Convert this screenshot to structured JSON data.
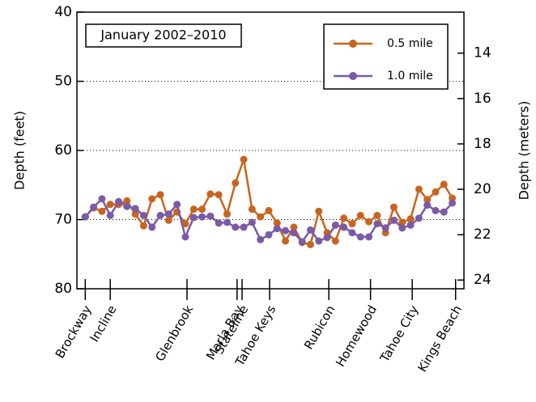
{
  "chart_data": {
    "type": "line",
    "title": "January 2002–2010",
    "y_label": "Depth (feet)",
    "y2_label": "Depth (meters)",
    "x": [
      0,
      1,
      2,
      3,
      4,
      5,
      6,
      7,
      8,
      9,
      10,
      11,
      12,
      13,
      14,
      15,
      16,
      17,
      18,
      19,
      20,
      21,
      22,
      23,
      24,
      25,
      26,
      27,
      28,
      29,
      30,
      31,
      32,
      33,
      34,
      35,
      36,
      37,
      38,
      39,
      40,
      41,
      42,
      43,
      44
    ],
    "xlim": [
      -1,
      45.4
    ],
    "xticks": [
      {
        "value": 0,
        "label": "Brockway"
      },
      {
        "value": 3,
        "label": "Incline"
      },
      {
        "value": 12.2,
        "label": "Glenbrook"
      },
      {
        "value": 18.2,
        "label": "Marla Bay"
      },
      {
        "value": 18.8,
        "label": "Stateline"
      },
      {
        "value": 22.1,
        "label": "Tahoe Keys"
      },
      {
        "value": 29.2,
        "label": "Rubicon"
      },
      {
        "value": 34.2,
        "label": "Homewood"
      },
      {
        "value": 39.2,
        "label": "Tahoe City"
      },
      {
        "value": 44.4,
        "label": "Kings Beach"
      }
    ],
    "ylim": [
      40,
      80
    ],
    "yticks": [
      40,
      50,
      60,
      70,
      80
    ],
    "y_inverted": true,
    "y2lim": [
      12.192,
      24.384
    ],
    "y2ticks": [
      14,
      16,
      18,
      20,
      22,
      24
    ],
    "grid": true,
    "legend_position": "upper right",
    "series": [
      {
        "name": "0.5 mile",
        "color": "#c8641e",
        "values": [
          69.6,
          68.3,
          68.8,
          67.8,
          67.8,
          67.3,
          69.2,
          70.9,
          67.0,
          66.4,
          70.1,
          68.9,
          70.6,
          68.5,
          68.5,
          66.3,
          66.4,
          69.2,
          64.7,
          61.3,
          68.5,
          69.6,
          68.7,
          70.5,
          73.1,
          71.1,
          73.3,
          73.6,
          68.8,
          71.9,
          73.1,
          69.8,
          70.6,
          69.4,
          70.3,
          69.4,
          71.9,
          68.2,
          70.4,
          69.9,
          65.6,
          67.1,
          66.0,
          64.9,
          66.9
        ]
      },
      {
        "name": "1.0 mile",
        "color": "#7b5aa6",
        "values": [
          69.6,
          68.2,
          67.0,
          69.4,
          67.4,
          68.1,
          68.4,
          69.4,
          71.1,
          69.4,
          69.2,
          67.8,
          72.5,
          69.7,
          69.6,
          69.5,
          70.5,
          70.4,
          71.1,
          71.1,
          70.4,
          72.9,
          72.2,
          71.3,
          71.6,
          71.9,
          73.2,
          71.5,
          73.1,
          72.6,
          70.8,
          71.1,
          71.9,
          72.5,
          72.5,
          70.6,
          71.2,
          70.1,
          71.2,
          70.8,
          69.8,
          67.9,
          68.7,
          68.9,
          67.6
        ]
      }
    ]
  }
}
